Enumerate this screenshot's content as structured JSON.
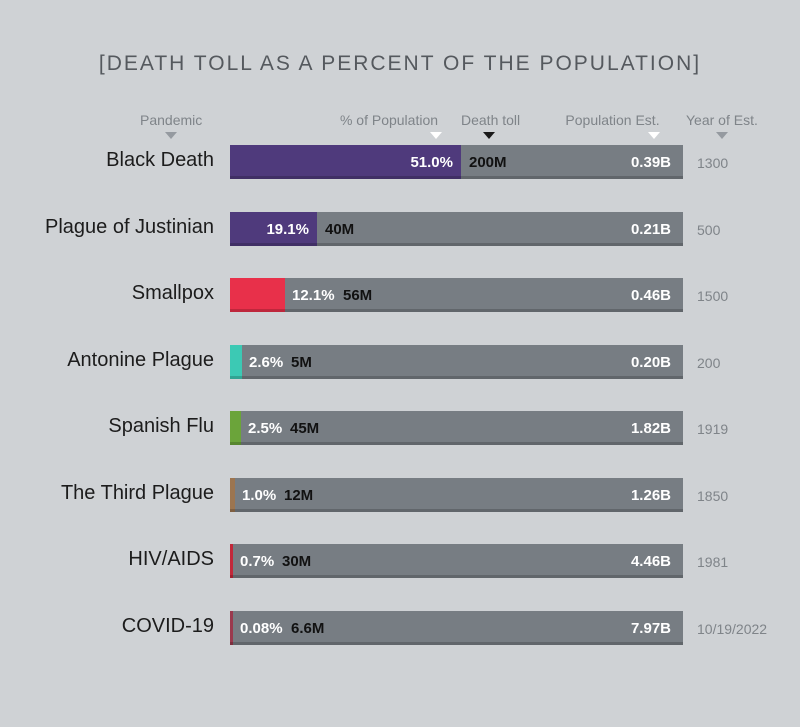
{
  "title": "[DEATH TOLL AS A PERCENT OF THE POPULATION]",
  "headers": {
    "pandemic": "Pandemic",
    "percent": "% of Population",
    "death_toll": "Death toll",
    "population": "Population Est.",
    "year": "Year of Est."
  },
  "chart_data": {
    "type": "bar",
    "title": "[DEATH TOLL AS A PERCENT OF THE POPULATION]",
    "categories": [
      "Black Death",
      "Plague of Justinian",
      "Smallpox",
      "Antonine Plague",
      "Spanish Flu",
      "The Third Plague",
      "HIV/AIDS",
      "COVID-19"
    ],
    "values": [
      51.0,
      19.1,
      12.1,
      2.6,
      2.5,
      1.0,
      0.7,
      0.08
    ],
    "xlim": [
      0,
      100
    ],
    "rows": [
      {
        "pandemic": "Black Death",
        "percent": 51.0,
        "percent_label": "51.0%",
        "death_toll": "200M",
        "population": "0.39B",
        "year": "1300",
        "color": "#4f3a7c"
      },
      {
        "pandemic": "Plague of Justinian",
        "percent": 19.1,
        "percent_label": "19.1%",
        "death_toll": "40M",
        "population": "0.21B",
        "year": "500",
        "color": "#4f3a7c"
      },
      {
        "pandemic": "Smallpox",
        "percent": 12.1,
        "percent_label": "12.1%",
        "death_toll": "56M",
        "population": "0.46B",
        "year": "1500",
        "color": "#e8304a"
      },
      {
        "pandemic": "Antonine Plague",
        "percent": 2.6,
        "percent_label": "2.6%",
        "death_toll": "5M",
        "population": "0.20B",
        "year": "200",
        "color": "#3cc9b4"
      },
      {
        "pandemic": "Spanish Flu",
        "percent": 2.5,
        "percent_label": "2.5%",
        "death_toll": "45M",
        "population": "1.82B",
        "year": "1919",
        "color": "#6ba43a"
      },
      {
        "pandemic": "The Third Plague",
        "percent": 1.0,
        "percent_label": "1.0%",
        "death_toll": "12M",
        "population": "1.26B",
        "year": "1850",
        "color": "#9c7550"
      },
      {
        "pandemic": "HIV/AIDS",
        "percent": 0.7,
        "percent_label": "0.7%",
        "death_toll": "30M",
        "population": "4.46B",
        "year": "1981",
        "color": "#c2283a"
      },
      {
        "pandemic": "COVID-19",
        "percent": 0.08,
        "percent_label": "0.08%",
        "death_toll": "6.6M",
        "population": "7.97B",
        "year": "10/19/2022",
        "color": "#9a3a4e"
      }
    ]
  }
}
